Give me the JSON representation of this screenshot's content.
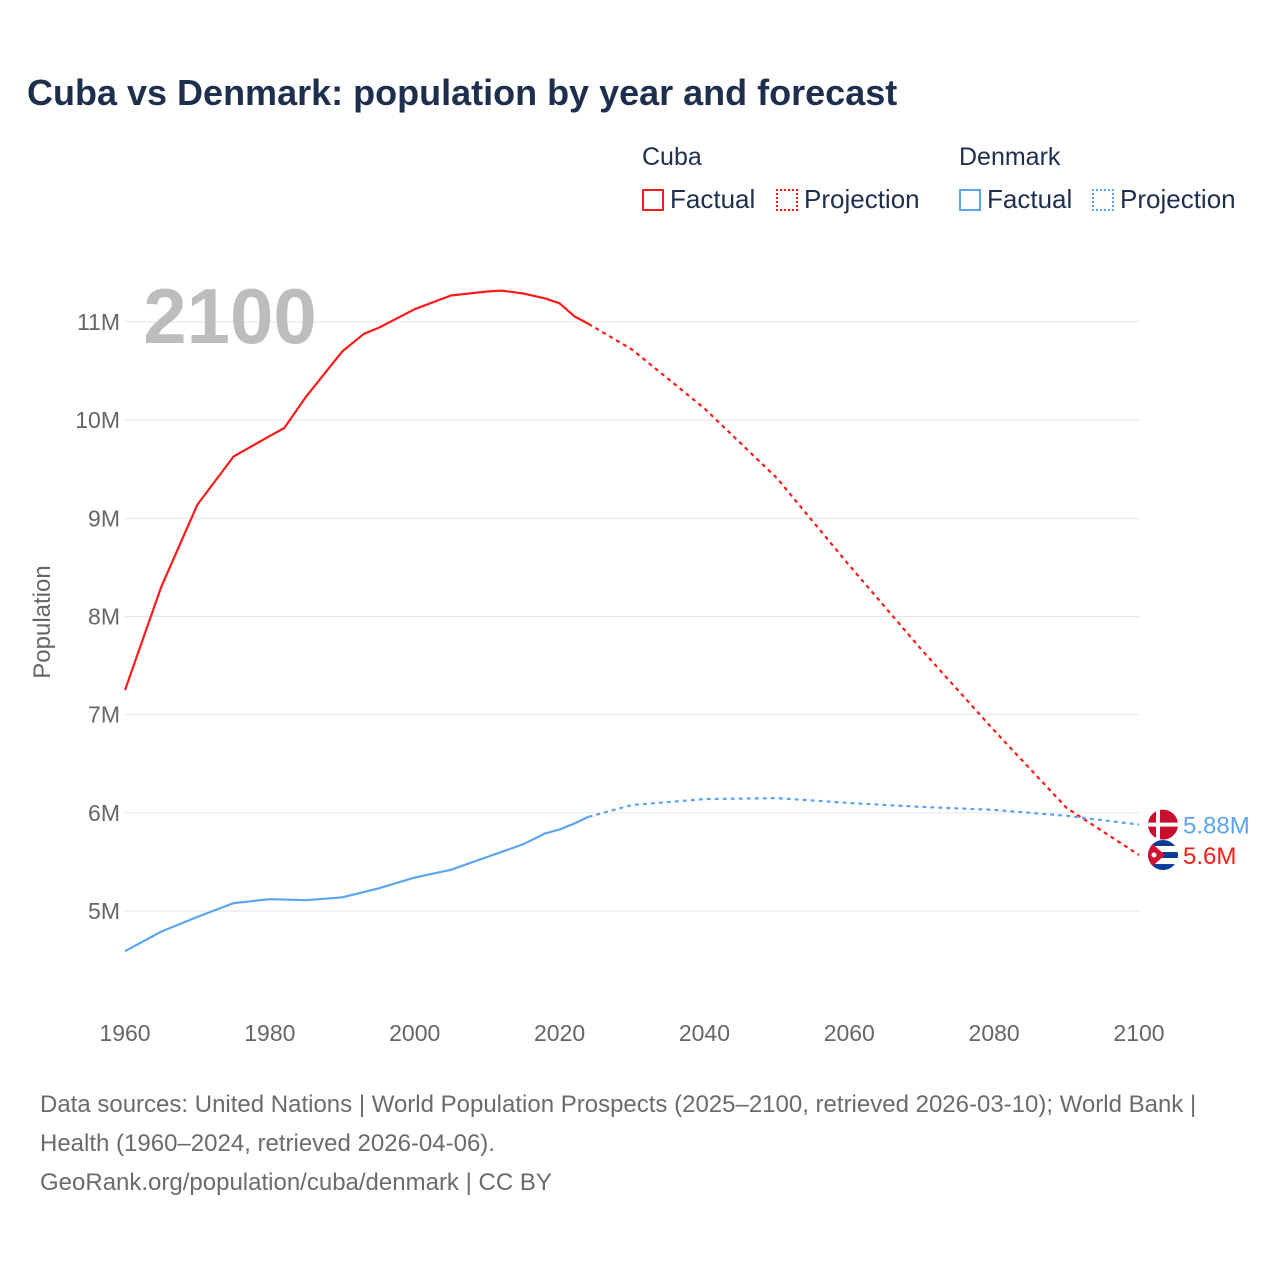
{
  "title": "Cuba vs Denmark: population by year and forecast",
  "legend": {
    "groups": [
      {
        "name": "Cuba",
        "factual": "Factual",
        "projection": "Projection",
        "color": "#ff1a1a"
      },
      {
        "name": "Denmark",
        "factual": "Factual",
        "projection": "Projection",
        "color": "#5ba4ef"
      }
    ]
  },
  "year_overlay": "2100",
  "footer": {
    "sources": "Data sources: United Nations | World Population Prospects (2025–2100, retrieved 2026-03-10); World Bank | Health (1960–2024, retrieved 2026-04-06).",
    "credit": "GeoRank.org/population/cuba/denmark | CC BY"
  },
  "chart_data": {
    "type": "line",
    "title": "Cuba vs Denmark: population by year and forecast",
    "xlabel": "",
    "ylabel": "Population",
    "xlim": [
      1960,
      2100
    ],
    "ylim": [
      4.4,
      11.5
    ],
    "x_ticks": [
      1960,
      1980,
      2000,
      2020,
      2040,
      2060,
      2080,
      2100
    ],
    "x_tick_labels": [
      "1960",
      "1980",
      "2000",
      "2020",
      "2040",
      "2060",
      "2080",
      "2100"
    ],
    "y_ticks": [
      5,
      6,
      7,
      8,
      9,
      10,
      11
    ],
    "y_tick_labels": [
      "5M",
      "6M",
      "7M",
      "8M",
      "9M",
      "10M",
      "11M"
    ],
    "grid": true,
    "legend_position": "top-right",
    "factual_end_year": 2024,
    "series": [
      {
        "name": "Cuba",
        "color": "#ff1a1a",
        "end_label": "5.6M",
        "x": [
          1960,
          1965,
          1970,
          1975,
          1980,
          1982,
          1985,
          1990,
          1993,
          1995,
          2000,
          2005,
          2010,
          2012,
          2015,
          2018,
          2020,
          2022,
          2024,
          2030,
          2040,
          2050,
          2060,
          2070,
          2080,
          2090,
          2100
        ],
        "values": [
          7.25,
          8.3,
          9.14,
          9.63,
          9.84,
          9.92,
          10.24,
          10.7,
          10.88,
          10.94,
          11.13,
          11.27,
          11.31,
          11.32,
          11.29,
          11.24,
          11.19,
          11.06,
          10.98,
          10.72,
          10.12,
          9.41,
          8.52,
          7.66,
          6.84,
          6.05,
          5.57
        ]
      },
      {
        "name": "Denmark",
        "color": "#5ba4ef",
        "end_label": "5.88M",
        "x": [
          1960,
          1965,
          1970,
          1975,
          1980,
          1985,
          1990,
          1995,
          2000,
          2005,
          2010,
          2015,
          2018,
          2020,
          2022,
          2024,
          2030,
          2040,
          2050,
          2060,
          2070,
          2080,
          2090,
          2100
        ],
        "values": [
          4.59,
          4.79,
          4.94,
          5.08,
          5.12,
          5.11,
          5.14,
          5.23,
          5.34,
          5.42,
          5.55,
          5.68,
          5.79,
          5.83,
          5.89,
          5.96,
          6.08,
          6.14,
          6.15,
          6.1,
          6.06,
          6.03,
          5.97,
          5.88
        ]
      }
    ]
  }
}
